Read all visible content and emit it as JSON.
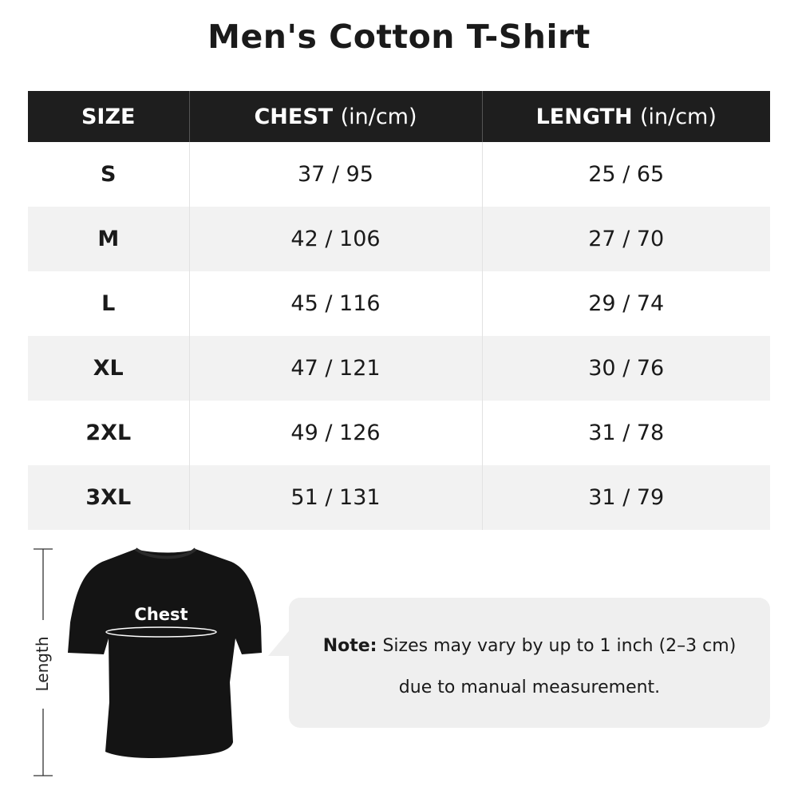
{
  "title": "Men's Cotton T-Shirt",
  "table": {
    "headers": [
      {
        "label": "SIZE",
        "unit": ""
      },
      {
        "label": "CHEST",
        "unit": "(in/cm)"
      },
      {
        "label": "LENGTH",
        "unit": "(in/cm)"
      }
    ],
    "rows": [
      {
        "size": "S",
        "chest": "37 / 95",
        "length": "25 / 65"
      },
      {
        "size": "M",
        "chest": "42 / 106",
        "length": "27 / 70"
      },
      {
        "size": "L",
        "chest": "45 / 116",
        "length": "29 / 74"
      },
      {
        "size": "XL",
        "chest": "47 / 121",
        "length": "30 / 76"
      },
      {
        "size": "2XL",
        "chest": "49 / 126",
        "length": "31 / 78"
      },
      {
        "size": "3XL",
        "chest": "51 / 131",
        "length": "31 / 79"
      }
    ]
  },
  "diagram": {
    "chest_label": "Chest",
    "length_label": "Length"
  },
  "note": {
    "bold": "Note:",
    "line1": "Sizes may vary by up to 1 inch (2–3 cm)",
    "line2": "due to manual measurement."
  },
  "colors": {
    "header_bg": "#1e1e1e",
    "alt_row": "#f2f2f2",
    "note_bg": "#efefef"
  }
}
